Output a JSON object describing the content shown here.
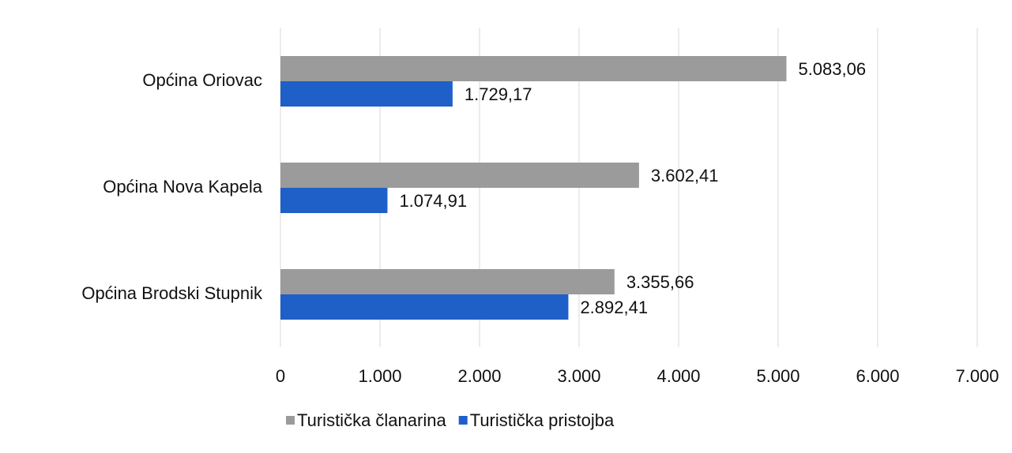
{
  "chart_data": {
    "type": "hbar",
    "categories": [
      "Općina Oriovac",
      "Općina Nova Kapela",
      "Općina Brodski Stupnik"
    ],
    "series": [
      {
        "name": "Turistička članarina",
        "color": "#9b9b9b",
        "values": [
          5083.06,
          3602.41,
          3355.66
        ],
        "value_labels": [
          "5.083,06",
          "3.602,41",
          "3.355,66"
        ]
      },
      {
        "name": "Turistička pristojba",
        "color": "#1f5fc8",
        "values": [
          1729.17,
          1074.91,
          2892.41
        ],
        "value_labels": [
          "1.729,17",
          "1.074,91",
          "2.892,41"
        ]
      }
    ],
    "xlim": [
      0,
      7000
    ],
    "xticks": [
      0,
      {
        "value": 1000,
        "label": "1.000"
      },
      {
        "value": 2000,
        "label": "2.000"
      },
      {
        "value": 3000,
        "label": "3.000"
      },
      {
        "value": 4000,
        "label": "4.000"
      },
      {
        "value": 5000,
        "label": "5.000"
      },
      {
        "value": 6000,
        "label": "6.000"
      },
      {
        "value": 7000,
        "label": "7.000"
      }
    ],
    "grid": true,
    "legend": "bottom"
  }
}
